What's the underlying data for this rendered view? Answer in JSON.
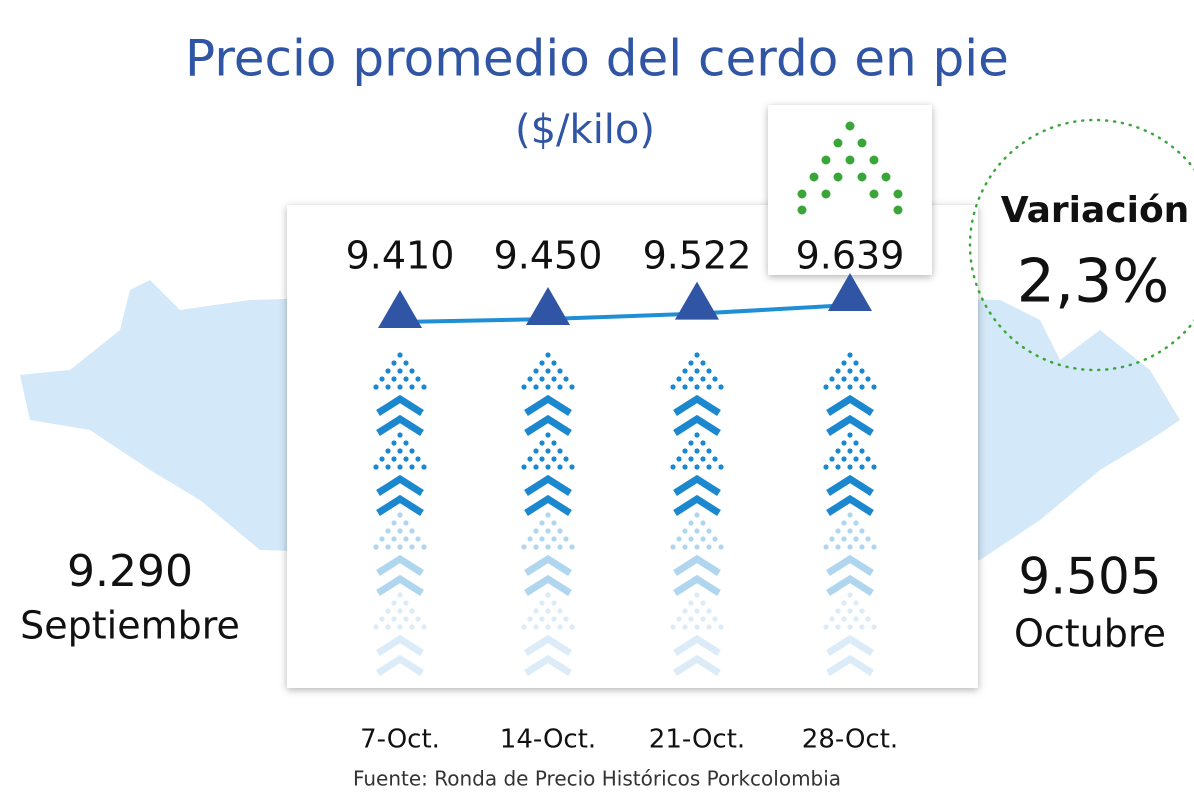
{
  "chart_data": {
    "type": "line",
    "title": "Precio promedio del cerdo en pie",
    "subtitle": "($/kilo)",
    "categories": [
      "7-Oct.",
      "14-Oct.",
      "21-Oct.",
      "28-Oct."
    ],
    "values": [
      9410,
      9450,
      9522,
      9639
    ],
    "value_labels": [
      "9.410",
      "9.450",
      "9.522",
      "9.639"
    ],
    "color": "#1e8fd5",
    "marker_color": "#2f55a4",
    "left_stat": {
      "value": 9290,
      "label": "9.290",
      "period": "Septiembre"
    },
    "right_stat": {
      "value": 9505,
      "label": "9.505",
      "period": "Octubre"
    },
    "variation": {
      "title": "Variación",
      "value": 2.3,
      "label": "2,3%"
    },
    "source": "Fuente: Ronda de Precio Históricos Porkcolombia"
  }
}
